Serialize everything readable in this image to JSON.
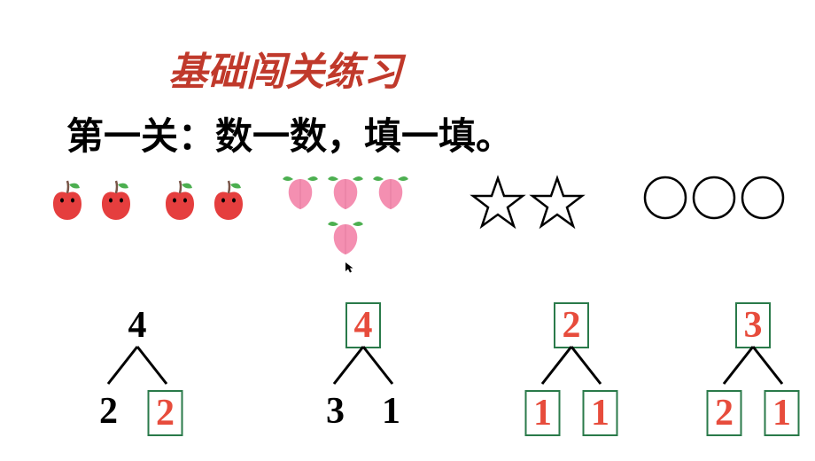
{
  "title": "基础闯关练习",
  "subtitle": "第一关：数一数，填一填。",
  "colors": {
    "title": "#c0392b",
    "text": "#000000",
    "answer": "#e74c3c",
    "box_border": "#2a7a4a",
    "apple_body": "#e53e3e",
    "apple_leaf": "#4caf50",
    "apple_stem": "#795548",
    "peach_body": "#f48fb1",
    "peach_leaf": "#4caf50",
    "star_stroke": "#000000",
    "circle_stroke": "#000000"
  },
  "icons": {
    "apples": {
      "count": 4,
      "size": 52
    },
    "peaches": {
      "count": 4,
      "size": 48
    },
    "stars": {
      "count": 2,
      "size": 64
    },
    "circles": {
      "count": 3,
      "size": 52
    }
  },
  "trees": [
    {
      "top": {
        "value": "4",
        "color": "black",
        "boxed": false
      },
      "left": {
        "value": "2",
        "color": "black",
        "boxed": false
      },
      "right": {
        "value": "2",
        "color": "red",
        "boxed": true
      }
    },
    {
      "top": {
        "value": "4",
        "color": "red",
        "boxed": true
      },
      "left": {
        "value": "3",
        "color": "black",
        "boxed": false
      },
      "right": {
        "value": "1",
        "color": "black",
        "boxed": false
      }
    },
    {
      "top": {
        "value": "2",
        "color": "red",
        "boxed": true
      },
      "left": {
        "value": "1",
        "color": "red",
        "boxed": true
      },
      "right": {
        "value": "1",
        "color": "red",
        "boxed": true
      }
    },
    {
      "top": {
        "value": "3",
        "color": "red",
        "boxed": true
      },
      "left": {
        "value": "2",
        "color": "red",
        "boxed": true
      },
      "right": {
        "value": "1",
        "color": "red",
        "boxed": true
      }
    }
  ]
}
